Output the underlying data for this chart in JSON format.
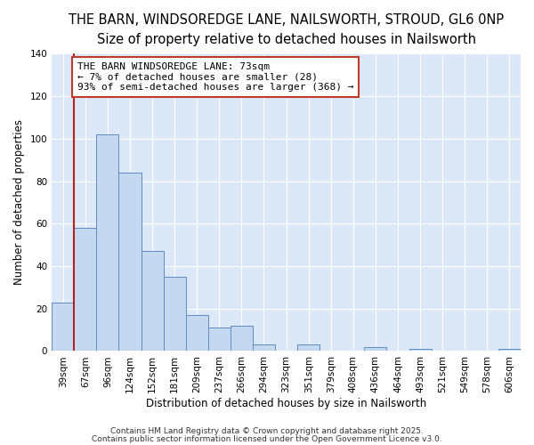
{
  "title": "THE BARN, WINDSOREDGE LANE, NAILSWORTH, STROUD, GL6 0NP",
  "subtitle": "Size of property relative to detached houses in Nailsworth",
  "xlabel": "Distribution of detached houses by size in Nailsworth",
  "ylabel": "Number of detached properties",
  "bar_labels": [
    "39sqm",
    "67sqm",
    "96sqm",
    "124sqm",
    "152sqm",
    "181sqm",
    "209sqm",
    "237sqm",
    "266sqm",
    "294sqm",
    "323sqm",
    "351sqm",
    "379sqm",
    "408sqm",
    "436sqm",
    "464sqm",
    "493sqm",
    "521sqm",
    "549sqm",
    "578sqm",
    "606sqm"
  ],
  "bar_values": [
    23,
    58,
    102,
    84,
    47,
    35,
    17,
    11,
    12,
    3,
    0,
    3,
    0,
    0,
    2,
    0,
    1,
    0,
    0,
    0,
    1
  ],
  "bar_color": "#c5d8f0",
  "bar_edge_color": "#5b8ec4",
  "ylim": [
    0,
    140
  ],
  "yticks": [
    0,
    20,
    40,
    60,
    80,
    100,
    120,
    140
  ],
  "vline_x": 1.0,
  "vline_color": "#b22222",
  "annotation_text": "THE BARN WINDSOREDGE LANE: 73sqm\n← 7% of detached houses are smaller (28)\n93% of semi-detached houses are larger (368) →",
  "annotation_box_color": "#ffffff",
  "annotation_box_edge": "#c0392b",
  "footer1": "Contains HM Land Registry data © Crown copyright and database right 2025.",
  "footer2": "Contains public sector information licensed under the Open Government Licence v3.0.",
  "background_color": "#ffffff",
  "plot_bg_color": "#dce8f8",
  "grid_color": "#ffffff",
  "title_fontsize": 10.5,
  "subtitle_fontsize": 9,
  "axis_label_fontsize": 8.5,
  "tick_fontsize": 7.5,
  "annotation_fontsize": 8,
  "footer_fontsize": 6.5
}
